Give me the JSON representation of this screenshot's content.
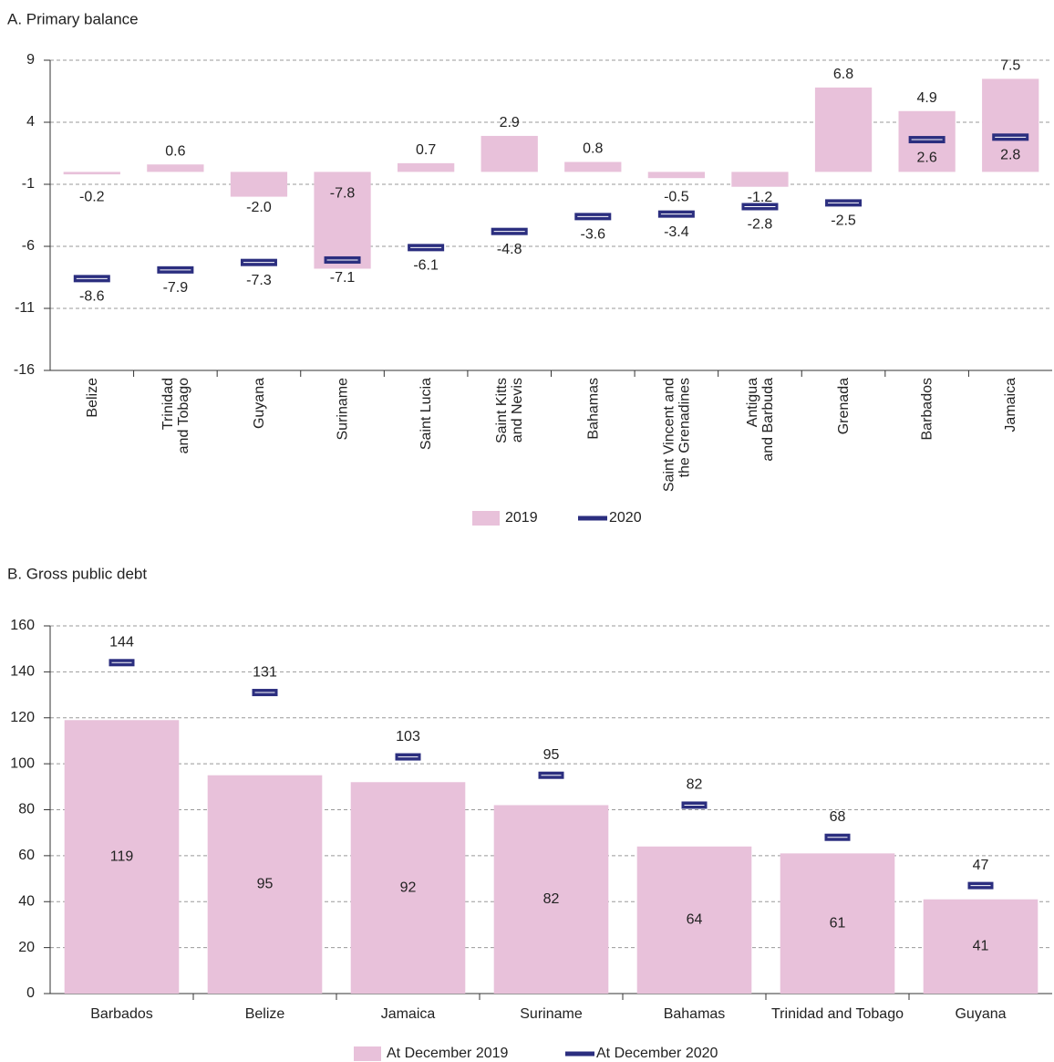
{
  "chart_data": [
    {
      "type": "bar",
      "title": "A. Primary balance",
      "categories": [
        [
          "Belize"
        ],
        [
          "Trinidad",
          "and Tobago"
        ],
        [
          "Guyana"
        ],
        [
          "Suriname"
        ],
        [
          "Saint Lucia"
        ],
        [
          "Saint Kitts",
          "and Nevis"
        ],
        [
          "Bahamas"
        ],
        [
          "Saint Vincent and",
          "the Grenadines"
        ],
        [
          "Antigua",
          "and Barbuda"
        ],
        [
          "Grenada"
        ],
        [
          "Barbados"
        ],
        [
          "Jamaica"
        ]
      ],
      "series": [
        {
          "name": "2019",
          "style": "bar",
          "color": "#e8c1da",
          "values": [
            -0.2,
            0.6,
            -2.0,
            -7.8,
            0.7,
            2.9,
            0.8,
            -0.5,
            -1.2,
            6.8,
            4.9,
            7.5
          ],
          "value_labels": [
            "-0.2",
            "0.6",
            "-2.0",
            "-7.8",
            "0.7",
            "2.9",
            "0.8",
            "-0.5",
            "-1.2",
            "6.8",
            "4.9",
            "7.5"
          ]
        },
        {
          "name": "2020",
          "style": "marker",
          "color": "#2b2e7f",
          "values": [
            -8.6,
            -7.9,
            -7.3,
            -7.1,
            -6.1,
            -4.8,
            -3.6,
            -3.4,
            -2.8,
            -2.5,
            2.6,
            2.8
          ],
          "value_labels": [
            "-8.6",
            "-7.9",
            "-7.3",
            "-7.1",
            "-6.1",
            "-4.8",
            "-3.6",
            "-3.4",
            "-2.8",
            "-2.5",
            "2.6",
            "2.8"
          ]
        }
      ],
      "ylim": [
        -16,
        9
      ],
      "yticks": [
        9,
        4,
        -1,
        -6,
        -11,
        -16
      ],
      "grid": true
    },
    {
      "type": "bar",
      "title": "B. Gross public debt",
      "categories": [
        [
          "Barbados"
        ],
        [
          "Belize"
        ],
        [
          "Jamaica"
        ],
        [
          "Suriname"
        ],
        [
          "Bahamas"
        ],
        [
          "Trinidad and Tobago"
        ],
        [
          "Guyana"
        ]
      ],
      "series": [
        {
          "name": "At December 2019",
          "style": "bar",
          "color": "#e8c1da",
          "values": [
            119,
            95,
            92,
            82,
            64,
            61,
            41
          ]
        },
        {
          "name": "At December 2020",
          "style": "marker",
          "color": "#2b2e7f",
          "values": [
            144,
            131,
            103,
            95,
            82,
            68,
            47
          ]
        }
      ],
      "ylim": [
        0,
        160
      ],
      "yticks": [
        0,
        20,
        40,
        60,
        80,
        100,
        120,
        140,
        160
      ],
      "grid": true
    }
  ]
}
